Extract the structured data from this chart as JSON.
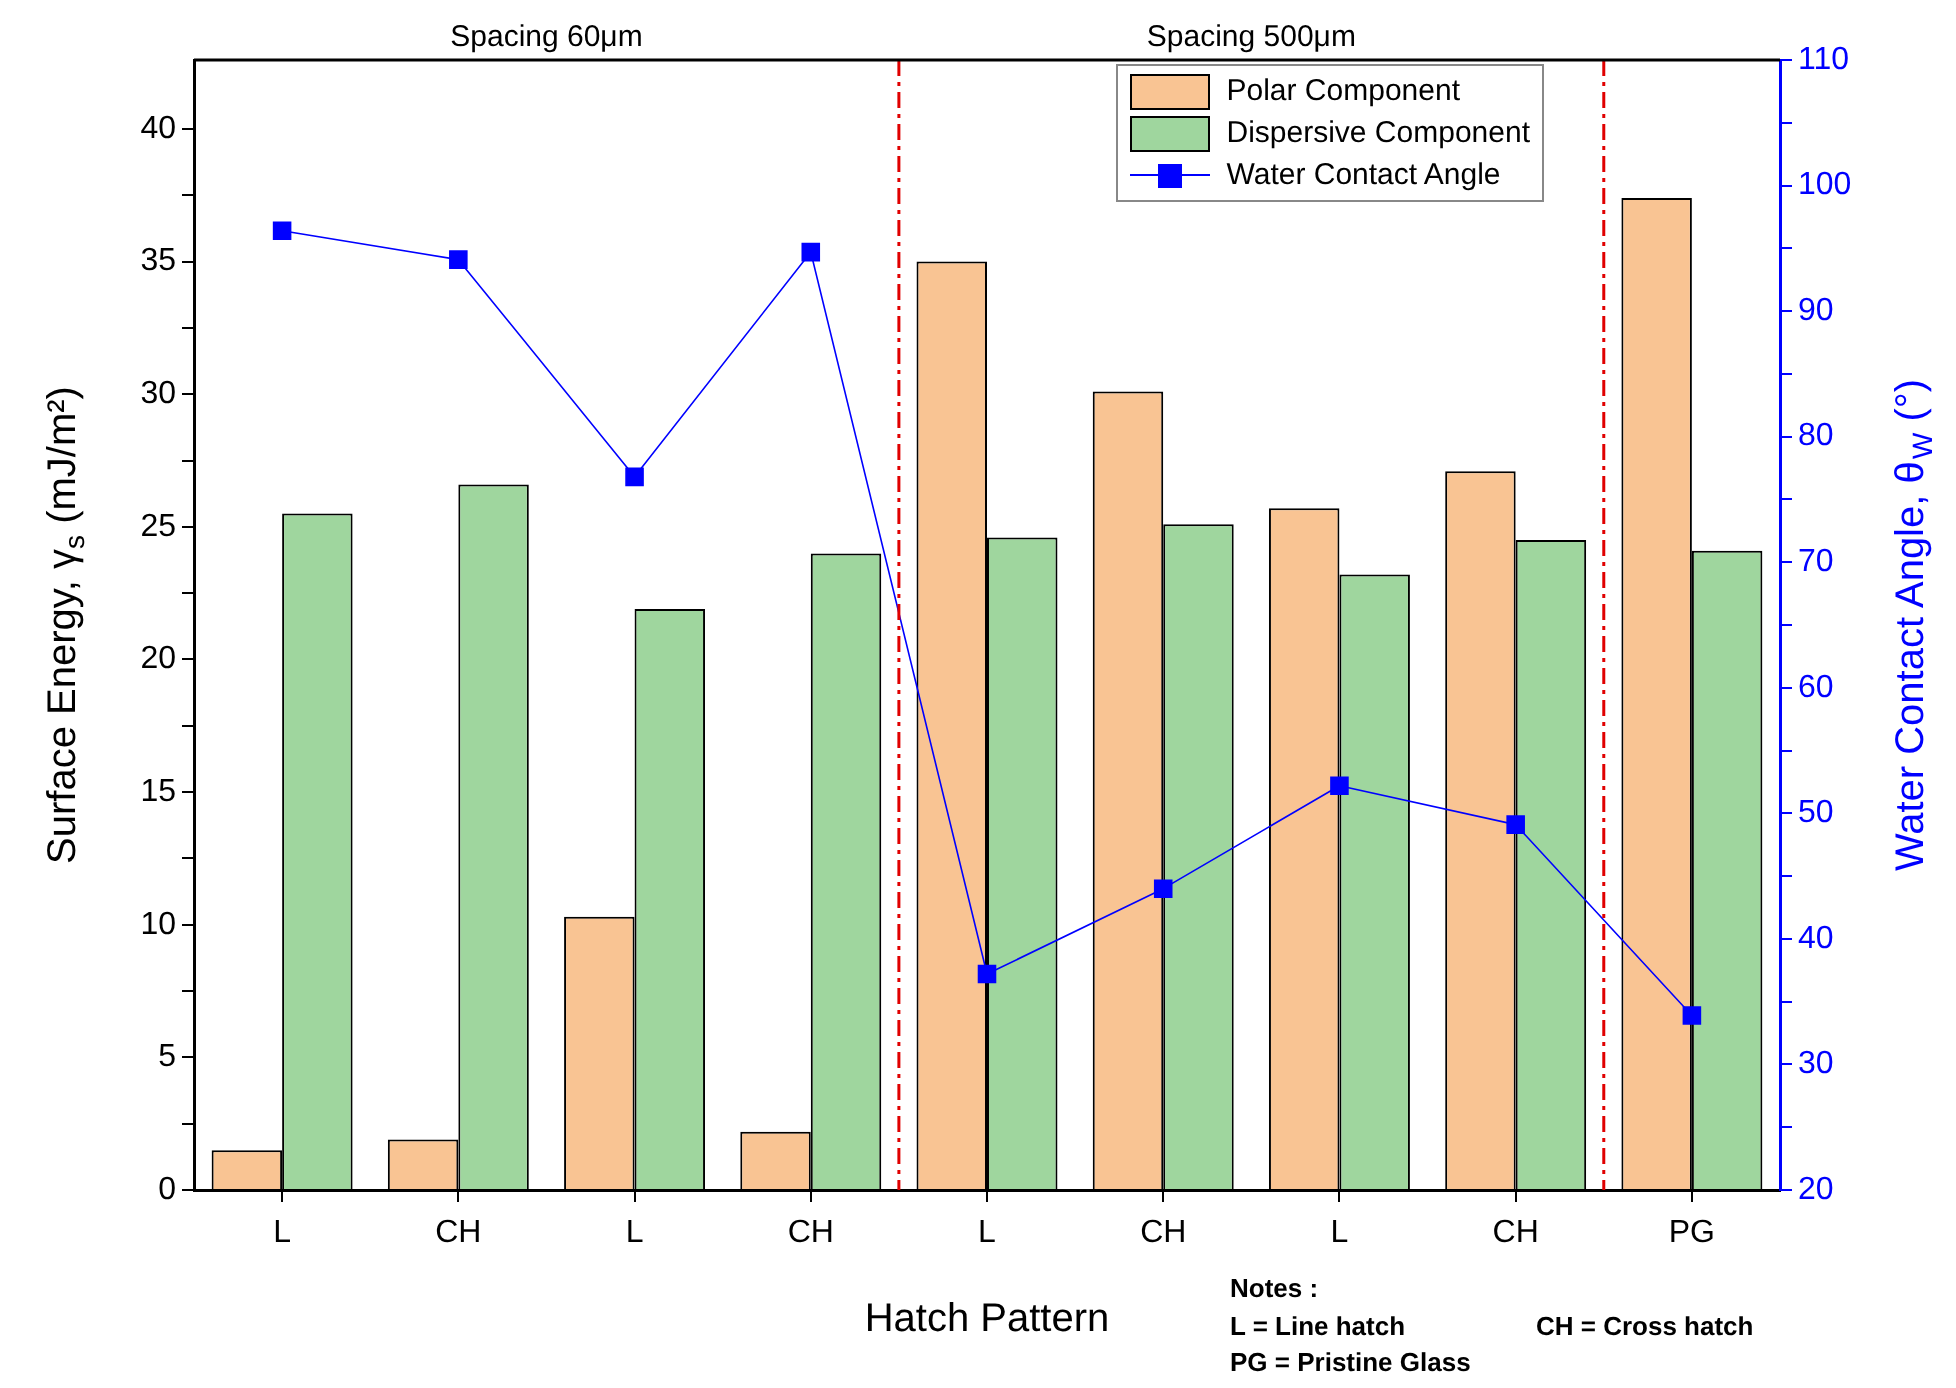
{
  "chart_data": {
    "type": "bar",
    "categories": [
      "L",
      "CH",
      "L",
      "CH",
      "L",
      "CH",
      "L",
      "CH",
      "PG"
    ],
    "xlabel": "Hatch Pattern",
    "ylabel": "Surface Energy, γ$_{s}$ (mJ/m²)",
    "y2label": "Water Contact Angle, θ$_{W}$ (°)",
    "series": [
      {
        "name": "Polar Component",
        "color": "#f9c493",
        "values": [
          1.5,
          1.9,
          10.3,
          2.2,
          35.0,
          30.1,
          25.7,
          27.1,
          37.4
        ]
      },
      {
        "name": "Dispersive Component",
        "color": "#9fd69e",
        "values": [
          25.5,
          26.6,
          21.9,
          24.0,
          24.6,
          25.1,
          23.2,
          24.5,
          24.1
        ]
      },
      {
        "name": "Water Contact Angle",
        "type": "line",
        "axis": "y2",
        "color": "#0000ff",
        "values": [
          96.4,
          94.1,
          76.8,
          94.7,
          37.2,
          44.0,
          52.2,
          49.1,
          33.9
        ]
      }
    ],
    "ylim": [
      0,
      42.6
    ],
    "yticks": [
      0,
      {
        "value": 2.5,
        "label": null
      },
      5,
      {
        "value": 7.5,
        "label": null
      },
      10,
      {
        "value": 12.5,
        "label": null
      },
      15,
      {
        "value": 17.5,
        "label": null
      },
      20,
      {
        "value": 22.5,
        "label": null
      },
      25,
      {
        "value": 27.5,
        "label": null
      },
      30,
      {
        "value": 32.5,
        "label": null
      },
      35,
      {
        "value": 37.5,
        "label": null
      },
      40
    ],
    "y2lim": [
      20,
      110
    ],
    "y2ticks": [
      20,
      {
        "value": 25,
        "label": null
      },
      30,
      {
        "value": 35,
        "label": null
      },
      40,
      {
        "value": 45,
        "label": null
      },
      50,
      {
        "value": 55,
        "label": null
      },
      60,
      {
        "value": 65,
        "label": null
      },
      70,
      {
        "value": 75,
        "label": null
      },
      80,
      {
        "value": 85,
        "label": null
      },
      90,
      {
        "value": 95,
        "label": null
      },
      100,
      {
        "value": 105,
        "label": null
      },
      110
    ],
    "annotations": [
      "Spacing 60μm",
      "Spacing 500μm",
      "Notes :",
      "L = Line hatch",
      "CH = Cross hatch",
      "PG = Pristine Glass"
    ],
    "legend": "top right",
    "grid": false,
    "marker": "square",
    "line_style": "solid"
  }
}
